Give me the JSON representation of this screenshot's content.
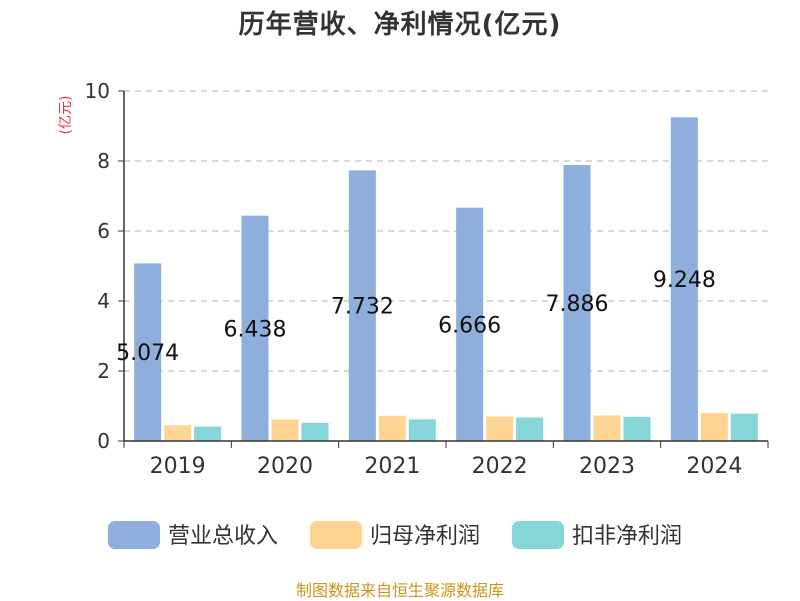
{
  "chart_data": {
    "type": "bar",
    "title": "历年营收、净利情况(亿元)",
    "ylabel": "(亿元)",
    "xlabel": "",
    "categories": [
      "2019",
      "2020",
      "2021",
      "2022",
      "2023",
      "2024"
    ],
    "ylim": [
      0,
      10
    ],
    "yticks": [
      "0",
      "2",
      "4",
      "6",
      "8",
      "10"
    ],
    "grid": true,
    "legend_position": "bottom",
    "series": [
      {
        "name": "营业总收入",
        "color": "#8eaedb",
        "values": [
          5.074,
          6.438,
          7.732,
          6.666,
          7.886,
          9.248
        ],
        "labels": [
          "5.074",
          "6.438",
          "7.732",
          "6.666",
          "7.886",
          "9.248"
        ]
      },
      {
        "name": "归母净利润",
        "color": "#ffd594",
        "values": [
          0.45,
          0.62,
          0.72,
          0.7,
          0.73,
          0.8
        ]
      },
      {
        "name": "扣非净利润",
        "color": "#86d5d8",
        "values": [
          0.41,
          0.52,
          0.62,
          0.67,
          0.69,
          0.78
        ]
      }
    ]
  },
  "footer": {
    "text": "制图数据来自恒生聚源数据库",
    "color": "#c8961e"
  },
  "ylabel_color": "#e8343a"
}
